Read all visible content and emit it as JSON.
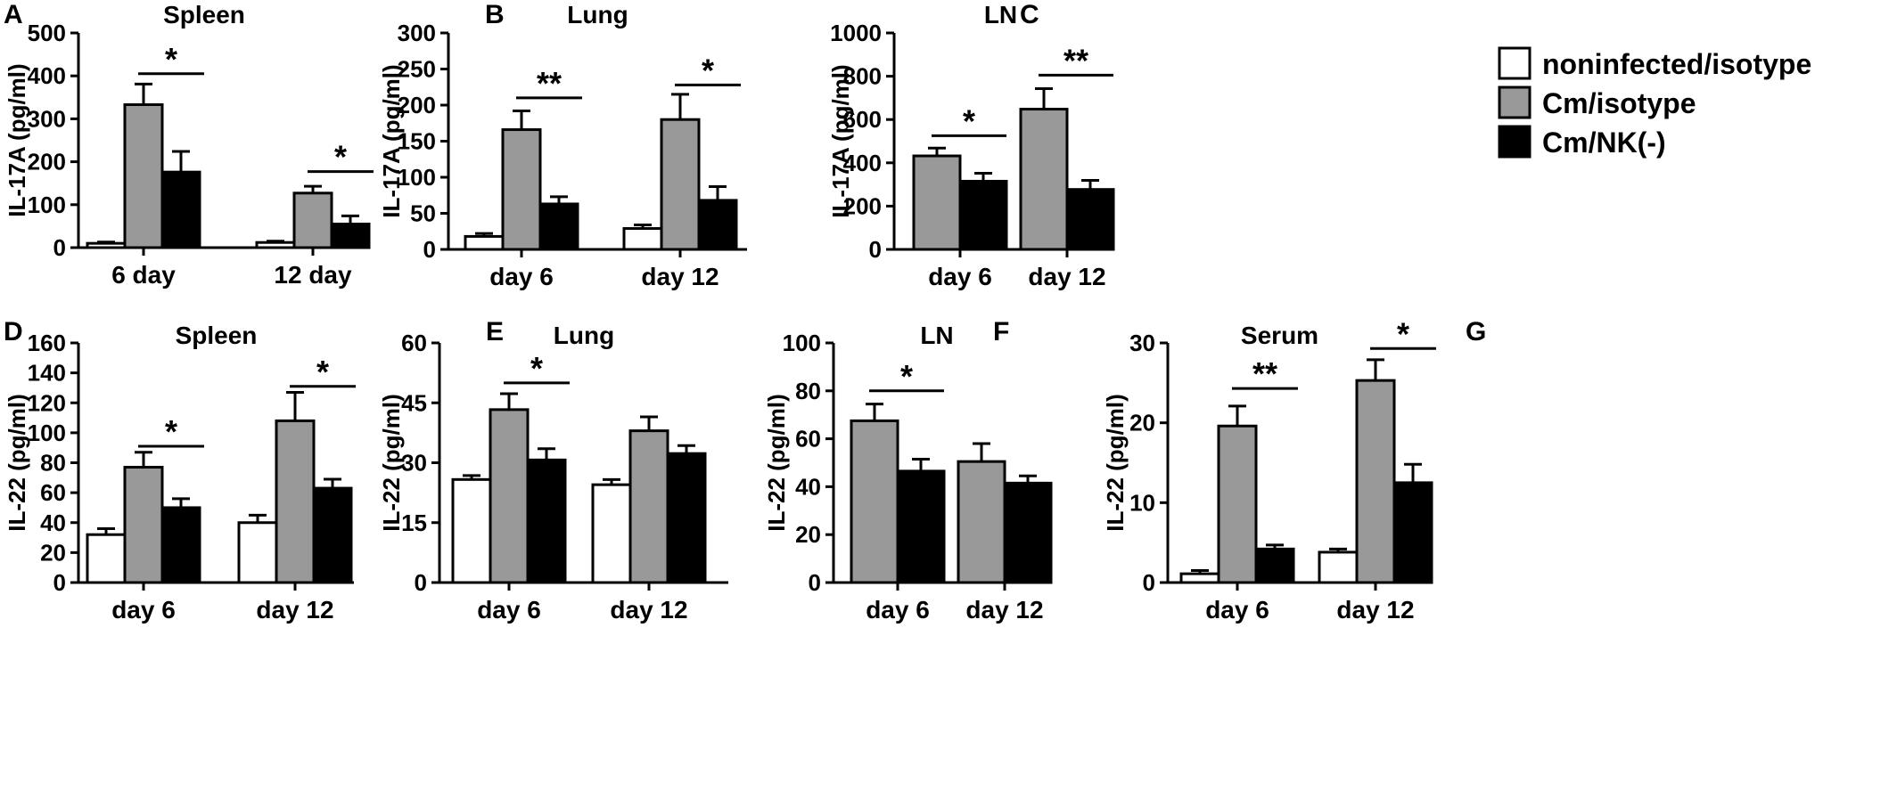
{
  "legend": {
    "items": [
      {
        "label": "noninfected/isotype",
        "color": "#ffffff"
      },
      {
        "label": "Cm/isotype",
        "color": "#999999"
      },
      {
        "label": "Cm/NK(-)",
        "color": "#000000"
      }
    ]
  },
  "chart_data": [
    {
      "panel": "A",
      "title": "Spleen",
      "type": "bar",
      "ylabel": "IL-17A (pg/ml)",
      "ylim": [
        0,
        500
      ],
      "yticks": [
        0,
        100,
        200,
        300,
        400,
        500
      ],
      "categories": [
        "6 day",
        "12 day"
      ],
      "series": [
        {
          "name": "noninfected/isotype",
          "values": [
            10,
            12
          ],
          "errors": [
            3,
            3
          ]
        },
        {
          "name": "Cm/isotype",
          "values": [
            333,
            127
          ],
          "errors": [
            48,
            16
          ]
        },
        {
          "name": "Cm/NK(-)",
          "values": [
            176,
            55
          ],
          "errors": [
            48,
            19
          ]
        }
      ],
      "significance": [
        {
          "category": 0,
          "from": 1,
          "to": 2,
          "label": "*",
          "y": 405
        },
        {
          "category": 1,
          "from": 1,
          "to": 2,
          "label": "*",
          "y": 177
        }
      ]
    },
    {
      "panel": "B",
      "title": "Lung",
      "type": "bar",
      "ylabel": "IL-17A (pg/ml)",
      "ylim": [
        0,
        300
      ],
      "yticks": [
        0,
        50,
        100,
        150,
        200,
        250,
        300
      ],
      "categories": [
        "day 6",
        "day 12"
      ],
      "series": [
        {
          "name": "noninfected/isotype",
          "values": [
            18,
            29
          ],
          "errors": [
            4,
            5
          ]
        },
        {
          "name": "Cm/isotype",
          "values": [
            166,
            180
          ],
          "errors": [
            26,
            35
          ]
        },
        {
          "name": "Cm/NK(-)",
          "values": [
            63,
            68
          ],
          "errors": [
            10,
            19
          ]
        }
      ],
      "significance": [
        {
          "category": 0,
          "from": 1,
          "to": 2,
          "label": "**",
          "y": 210
        },
        {
          "category": 1,
          "from": 1,
          "to": 2,
          "label": "*",
          "y": 228
        }
      ]
    },
    {
      "panel": "C",
      "title": "LN",
      "type": "bar",
      "ylabel": "IL-17A (pg/ml)",
      "ylim": [
        0,
        1000
      ],
      "yticks": [
        0,
        200,
        400,
        600,
        800,
        1000
      ],
      "categories": [
        "day 6",
        "day 12"
      ],
      "series": [
        {
          "name": "Cm/isotype",
          "values": [
            432,
            648
          ],
          "errors": [
            36,
            95
          ]
        },
        {
          "name": "Cm/NK(-)",
          "values": [
            315,
            277
          ],
          "errors": [
            37,
            42
          ]
        }
      ],
      "significance": [
        {
          "category": 0,
          "from": 0,
          "to": 1,
          "label": "*",
          "y": 525
        },
        {
          "category": 1,
          "from": 0,
          "to": 1,
          "label": "**",
          "y": 805
        }
      ]
    },
    {
      "panel": "D",
      "title": "Spleen",
      "type": "bar",
      "ylabel": "IL-22 (pg/ml)",
      "ylim": [
        0,
        160
      ],
      "yticks": [
        0,
        20,
        40,
        60,
        80,
        100,
        120,
        140,
        160
      ],
      "categories": [
        "day 6",
        "day 12"
      ],
      "series": [
        {
          "name": "noninfected/isotype",
          "values": [
            32,
            40
          ],
          "errors": [
            4,
            5
          ]
        },
        {
          "name": "Cm/isotype",
          "values": [
            77,
            108
          ],
          "errors": [
            10,
            19
          ]
        },
        {
          "name": "Cm/NK(-)",
          "values": [
            50,
            63
          ],
          "errors": [
            6,
            6
          ]
        }
      ],
      "significance": [
        {
          "category": 0,
          "from": 1,
          "to": 2,
          "label": "*",
          "y": 91
        },
        {
          "category": 1,
          "from": 1,
          "to": 2,
          "label": "*",
          "y": 131
        }
      ]
    },
    {
      "panel": "E",
      "title": "Lung",
      "type": "bar",
      "ylabel": "IL-22 (pg/ml)",
      "ylim": [
        0,
        60
      ],
      "yticks": [
        0,
        15,
        30,
        45,
        60
      ],
      "categories": [
        "day 6",
        "day 12"
      ],
      "series": [
        {
          "name": "noninfected/isotype",
          "values": [
            25.8,
            24.5
          ],
          "errors": [
            1.0,
            1.3
          ]
        },
        {
          "name": "Cm/isotype",
          "values": [
            43.3,
            38
          ],
          "errors": [
            4.0,
            3.5
          ]
        },
        {
          "name": "Cm/NK(-)",
          "values": [
            30.7,
            32.3
          ],
          "errors": [
            2.8,
            2.0
          ]
        }
      ],
      "significance": [
        {
          "category": 0,
          "from": 1,
          "to": 2,
          "label": "*",
          "y": 50
        }
      ]
    },
    {
      "panel": "F",
      "title": "LN",
      "type": "bar",
      "ylabel": "IL-22 (pg/ml)",
      "ylim": [
        0,
        100
      ],
      "yticks": [
        0,
        20,
        40,
        60,
        80,
        100
      ],
      "categories": [
        "day 6",
        "day 12"
      ],
      "series": [
        {
          "name": "Cm/isotype",
          "values": [
            67.5,
            50.5
          ],
          "errors": [
            7,
            7.5
          ]
        },
        {
          "name": "Cm/NK(-)",
          "values": [
            46.5,
            41.5
          ],
          "errors": [
            5,
            3
          ]
        }
      ],
      "significance": [
        {
          "category": 0,
          "from": 0,
          "to": 1,
          "label": "*",
          "y": 80
        }
      ]
    },
    {
      "panel": "G",
      "title": "Serum",
      "type": "bar",
      "ylabel": "IL-22 (pg/ml)",
      "ylim": [
        0,
        30
      ],
      "yticks": [
        0,
        10,
        20,
        30
      ],
      "categories": [
        "day 6",
        "day 12"
      ],
      "series": [
        {
          "name": "noninfected/isotype",
          "values": [
            1.1,
            3.8
          ],
          "errors": [
            0.4,
            0.4
          ]
        },
        {
          "name": "Cm/isotype",
          "values": [
            19.6,
            25.3
          ],
          "errors": [
            2.5,
            2.6
          ]
        },
        {
          "name": "Cm/NK(-)",
          "values": [
            4.2,
            12.5
          ],
          "errors": [
            0.5,
            2.3
          ]
        }
      ],
      "significance": [
        {
          "category": 0,
          "from": 1,
          "to": 2,
          "label": "**",
          "y": 24.3
        },
        {
          "category": 1,
          "from": 1,
          "to": 2,
          "label": "*",
          "y": 29.3
        }
      ]
    }
  ]
}
